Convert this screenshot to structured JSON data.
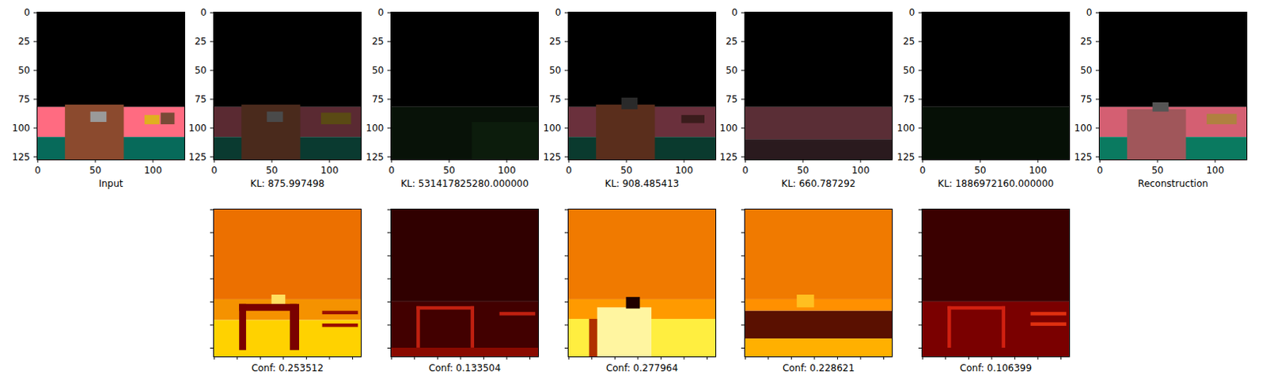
{
  "chart_data": [
    {
      "type": "image",
      "x_label": "Input",
      "xlim": [
        -0.5,
        127.5
      ],
      "ylim": [
        127.5,
        -0.5
      ],
      "xticks": [
        0,
        50,
        100
      ],
      "yticks": [
        0,
        25,
        50,
        75,
        100,
        125
      ],
      "regions": [
        {
          "x1": -0.5,
          "x2": 127.5,
          "y1": -0.5,
          "y2": 82,
          "color": "#000000"
        },
        {
          "x1": -0.5,
          "x2": 127.5,
          "y1": 82,
          "y2": 108,
          "color": "#ff6b81"
        },
        {
          "x1": -0.5,
          "x2": 127.5,
          "y1": 108,
          "y2": 127.5,
          "color": "#076a5a"
        },
        {
          "x1": 24,
          "x2": 75,
          "y1": 80,
          "y2": 127.5,
          "color": "#8b4a2e"
        },
        {
          "x1": 46,
          "x2": 60,
          "y1": 86,
          "y2": 95,
          "color": "#9a9a9a"
        },
        {
          "x1": 93,
          "x2": 106,
          "y1": 89,
          "y2": 97,
          "color": "#e0b020"
        },
        {
          "x1": 107,
          "x2": 119,
          "y1": 87,
          "y2": 97,
          "color": "#7a4a36"
        }
      ]
    },
    {
      "type": "image",
      "x_label": "KL: 875.997498",
      "xlim": [
        -0.5,
        127.5
      ],
      "ylim": [
        127.5,
        -0.5
      ],
      "xticks": [
        0,
        50,
        100
      ],
      "yticks": [
        0,
        25,
        50,
        75,
        100,
        125
      ],
      "regions": [
        {
          "x1": -0.5,
          "x2": 127.5,
          "y1": -0.5,
          "y2": 82,
          "color": "#000000"
        },
        {
          "x1": -0.5,
          "x2": 127.5,
          "y1": 82,
          "y2": 108,
          "color": "#5a2a32"
        },
        {
          "x1": -0.5,
          "x2": 127.5,
          "y1": 108,
          "y2": 127.5,
          "color": "#0a3a30"
        },
        {
          "x1": 24,
          "x2": 75,
          "y1": 80,
          "y2": 127.5,
          "color": "#4a2a1c"
        },
        {
          "x1": 46,
          "x2": 60,
          "y1": 86,
          "y2": 95,
          "color": "#4a4a4a"
        },
        {
          "x1": 93,
          "x2": 119,
          "y1": 87,
          "y2": 97,
          "color": "#5a4a14"
        }
      ]
    },
    {
      "type": "image",
      "x_label": "KL: 531417825280.000000",
      "xlim": [
        -0.5,
        127.5
      ],
      "ylim": [
        127.5,
        -0.5
      ],
      "xticks": [
        0,
        50,
        100
      ],
      "yticks": [
        0,
        25,
        50,
        75,
        100,
        125
      ],
      "regions": [
        {
          "x1": -0.5,
          "x2": 127.5,
          "y1": -0.5,
          "y2": 82,
          "color": "#000000"
        },
        {
          "x1": -0.5,
          "x2": 127.5,
          "y1": 82,
          "y2": 127.5,
          "color": "#081208"
        },
        {
          "x1": 70,
          "x2": 127.5,
          "y1": 95,
          "y2": 127.5,
          "color": "#0c1c0c"
        }
      ]
    },
    {
      "type": "image",
      "x_label": "KL: 908.485413",
      "xlim": [
        -0.5,
        127.5
      ],
      "ylim": [
        127.5,
        -0.5
      ],
      "xticks": [
        0,
        50,
        100
      ],
      "yticks": [
        0,
        25,
        50,
        75,
        100,
        125
      ],
      "regions": [
        {
          "x1": -0.5,
          "x2": 127.5,
          "y1": -0.5,
          "y2": 82,
          "color": "#000000"
        },
        {
          "x1": -0.5,
          "x2": 127.5,
          "y1": 82,
          "y2": 108,
          "color": "#6a303c"
        },
        {
          "x1": -0.5,
          "x2": 127.5,
          "y1": 108,
          "y2": 127.5,
          "color": "#0a3a2e"
        },
        {
          "x1": 24,
          "x2": 75,
          "y1": 80,
          "y2": 127.5,
          "color": "#5a2e1c"
        },
        {
          "x1": 46,
          "x2": 60,
          "y1": 74,
          "y2": 84,
          "color": "#2a2a2a"
        },
        {
          "x1": 98,
          "x2": 118,
          "y1": 89,
          "y2": 96,
          "color": "#3a1c1c"
        }
      ]
    },
    {
      "type": "image",
      "x_label": "KL: 660.787292",
      "xlim": [
        -0.5,
        127.5
      ],
      "ylim": [
        127.5,
        -0.5
      ],
      "xticks": [
        0,
        50,
        100
      ],
      "yticks": [
        0,
        25,
        50,
        75,
        100,
        125
      ],
      "regions": [
        {
          "x1": -0.5,
          "x2": 127.5,
          "y1": -0.5,
          "y2": 82,
          "color": "#000000"
        },
        {
          "x1": -0.5,
          "x2": 127.5,
          "y1": 82,
          "y2": 110,
          "color": "#5a2e36"
        },
        {
          "x1": -0.5,
          "x2": 127.5,
          "y1": 110,
          "y2": 127.5,
          "color": "#2a1a1e"
        }
      ]
    },
    {
      "type": "image",
      "x_label": "KL: 1886972160.000000",
      "xlim": [
        -0.5,
        127.5
      ],
      "ylim": [
        127.5,
        -0.5
      ],
      "xticks": [
        0,
        50,
        100
      ],
      "yticks": [
        0,
        25,
        50,
        75,
        100,
        125
      ],
      "regions": [
        {
          "x1": -0.5,
          "x2": 127.5,
          "y1": -0.5,
          "y2": 82,
          "color": "#000000"
        },
        {
          "x1": -0.5,
          "x2": 127.5,
          "y1": 82,
          "y2": 127.5,
          "color": "#061006"
        }
      ]
    },
    {
      "type": "image",
      "x_label": "Reconstruction",
      "xlim": [
        -0.5,
        127.5
      ],
      "ylim": [
        127.5,
        -0.5
      ],
      "xticks": [
        0,
        50,
        100
      ],
      "yticks": [
        0,
        25,
        50,
        75,
        100,
        125
      ],
      "regions": [
        {
          "x1": -0.5,
          "x2": 127.5,
          "y1": -0.5,
          "y2": 82,
          "color": "#000000"
        },
        {
          "x1": -0.5,
          "x2": 127.5,
          "y1": 82,
          "y2": 108,
          "color": "#d45f72"
        },
        {
          "x1": -0.5,
          "x2": 127.5,
          "y1": 108,
          "y2": 127.5,
          "color": "#0a7a60"
        },
        {
          "x1": 24,
          "x2": 75,
          "y1": 84,
          "y2": 127.5,
          "color": "#a0565a"
        },
        {
          "x1": 46,
          "x2": 60,
          "y1": 78,
          "y2": 86,
          "color": "#555555"
        },
        {
          "x1": 93,
          "x2": 119,
          "y1": 88,
          "y2": 97,
          "color": "#b08040"
        }
      ]
    },
    {
      "type": "image",
      "x_label": "Conf: 0.253512",
      "tick_labels": false,
      "xlim": [
        -0.5,
        127.5
      ],
      "ylim": [
        127.5,
        -0.5
      ],
      "xticks": [
        0,
        20,
        40,
        60,
        80,
        100,
        120
      ],
      "yticks": [
        0,
        20,
        40,
        60,
        80,
        100,
        120
      ],
      "regions": [
        {
          "x1": -0.5,
          "x2": 127.5,
          "y1": -0.5,
          "y2": 78,
          "color": "#ec7000"
        },
        {
          "x1": -0.5,
          "x2": 127.5,
          "y1": 78,
          "y2": 96,
          "color": "#f59200"
        },
        {
          "x1": -0.5,
          "x2": 127.5,
          "y1": 96,
          "y2": 127.5,
          "color": "#ffd200"
        },
        {
          "x1": 50,
          "x2": 62,
          "y1": 74,
          "y2": 84,
          "color": "#ffe060"
        },
        {
          "x1": 22,
          "x2": 72,
          "y1": 82,
          "y2": 88,
          "color": "#7a0000"
        },
        {
          "x1": 22,
          "x2": 28,
          "y1": 82,
          "y2": 122,
          "color": "#7a0000"
        },
        {
          "x1": 66,
          "x2": 74,
          "y1": 82,
          "y2": 122,
          "color": "#7a0000"
        },
        {
          "x1": 94,
          "x2": 125,
          "y1": 88,
          "y2": 91,
          "color": "#9a1000"
        },
        {
          "x1": 94,
          "x2": 125,
          "y1": 99,
          "y2": 102,
          "color": "#9a1000"
        }
      ]
    },
    {
      "type": "image",
      "x_label": "Conf: 0.133504",
      "tick_labels": false,
      "xlim": [
        -0.5,
        127.5
      ],
      "ylim": [
        127.5,
        -0.5
      ],
      "xticks": [
        0,
        20,
        40,
        60,
        80,
        100,
        120
      ],
      "yticks": [
        0,
        20,
        40,
        60,
        80,
        100,
        120
      ],
      "regions": [
        {
          "x1": -0.5,
          "x2": 127.5,
          "y1": -0.5,
          "y2": 80,
          "color": "#300000"
        },
        {
          "x1": -0.5,
          "x2": 127.5,
          "y1": 80,
          "y2": 127.5,
          "color": "#420000"
        },
        {
          "x1": 22,
          "x2": 72,
          "y1": 84,
          "y2": 87,
          "color": "#c02010"
        },
        {
          "x1": 22,
          "x2": 25,
          "y1": 84,
          "y2": 120,
          "color": "#c02010"
        },
        {
          "x1": 69,
          "x2": 72,
          "y1": 84,
          "y2": 120,
          "color": "#c02010"
        },
        {
          "x1": 94,
          "x2": 125,
          "y1": 89,
          "y2": 92,
          "color": "#c02010"
        },
        {
          "x1": -0.5,
          "x2": 127.5,
          "y1": 120,
          "y2": 127.5,
          "color": "#8a0a00"
        }
      ]
    },
    {
      "type": "image",
      "x_label": "Conf: 0.277964",
      "tick_labels": false,
      "xlim": [
        -0.5,
        127.5
      ],
      "ylim": [
        127.5,
        -0.5
      ],
      "xticks": [
        0,
        20,
        40,
        60,
        80,
        100,
        120
      ],
      "yticks": [
        0,
        20,
        40,
        60,
        80,
        100,
        120
      ],
      "regions": [
        {
          "x1": -0.5,
          "x2": 127.5,
          "y1": -0.5,
          "y2": 78,
          "color": "#f07a00"
        },
        {
          "x1": -0.5,
          "x2": 127.5,
          "y1": 78,
          "y2": 95,
          "color": "#ff9a00"
        },
        {
          "x1": -0.5,
          "x2": 127.5,
          "y1": 95,
          "y2": 127.5,
          "color": "#ffee40"
        },
        {
          "x1": 25,
          "x2": 72,
          "y1": 85,
          "y2": 127.5,
          "color": "#fff5a0"
        },
        {
          "x1": 18,
          "x2": 25,
          "y1": 95,
          "y2": 127.5,
          "color": "#b03000"
        },
        {
          "x1": 50,
          "x2": 62,
          "y1": 76,
          "y2": 86,
          "color": "#200000"
        }
      ]
    },
    {
      "type": "image",
      "x_label": "Conf: 0.228621",
      "tick_labels": false,
      "xlim": [
        -0.5,
        127.5
      ],
      "ylim": [
        127.5,
        -0.5
      ],
      "xticks": [
        0,
        20,
        40,
        60,
        80,
        100,
        120
      ],
      "yticks": [
        0,
        20,
        40,
        60,
        80,
        100,
        120
      ],
      "regions": [
        {
          "x1": -0.5,
          "x2": 127.5,
          "y1": -0.5,
          "y2": 78,
          "color": "#f07a00"
        },
        {
          "x1": -0.5,
          "x2": 127.5,
          "y1": 78,
          "y2": 88,
          "color": "#ff9000"
        },
        {
          "x1": -0.5,
          "x2": 127.5,
          "y1": 88,
          "y2": 112,
          "color": "#5a1000"
        },
        {
          "x1": -0.5,
          "x2": 127.5,
          "y1": 112,
          "y2": 127.5,
          "color": "#ffb000"
        },
        {
          "x1": 45,
          "x2": 60,
          "y1": 74,
          "y2": 85,
          "color": "#ffc020"
        }
      ]
    },
    {
      "type": "image",
      "x_label": "Conf: 0.106399",
      "tick_labels": false,
      "xlim": [
        -0.5,
        127.5
      ],
      "ylim": [
        127.5,
        -0.5
      ],
      "xticks": [
        0,
        20,
        40,
        60,
        80,
        100,
        120
      ],
      "yticks": [
        0,
        20,
        40,
        60,
        80,
        100,
        120
      ],
      "regions": [
        {
          "x1": -0.5,
          "x2": 127.5,
          "y1": -0.5,
          "y2": 80,
          "color": "#3a0000"
        },
        {
          "x1": -0.5,
          "x2": 127.5,
          "y1": 80,
          "y2": 127.5,
          "color": "#7a0000"
        },
        {
          "x1": 22,
          "x2": 72,
          "y1": 84,
          "y2": 87,
          "color": "#d02010"
        },
        {
          "x1": 22,
          "x2": 25,
          "y1": 84,
          "y2": 120,
          "color": "#d02010"
        },
        {
          "x1": 69,
          "x2": 72,
          "y1": 84,
          "y2": 120,
          "color": "#d02010"
        },
        {
          "x1": 94,
          "x2": 125,
          "y1": 89,
          "y2": 92,
          "color": "#e03010"
        },
        {
          "x1": 94,
          "x2": 125,
          "y1": 98,
          "y2": 101,
          "color": "#e03010"
        }
      ]
    }
  ]
}
